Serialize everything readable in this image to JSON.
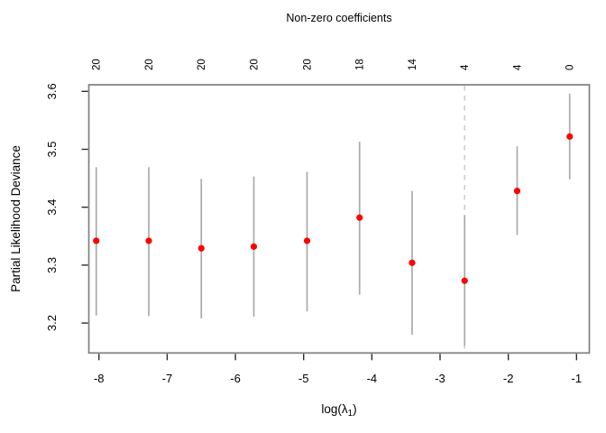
{
  "chart_data": {
    "type": "scatter",
    "title": "Non-zero coefficients",
    "xlabel": {
      "text": "log(λ1)",
      "prefix": "log(λ",
      "sub": "1",
      "suffix": ")"
    },
    "ylabel": "Partial Likelihood Deviance",
    "x_ticks": [
      -8,
      -7,
      -6,
      -5,
      -4,
      -3,
      -2,
      -1
    ],
    "y_ticks": [
      3.2,
      3.3,
      3.4,
      3.5,
      3.6
    ],
    "xlim": [
      -8.15,
      -0.81
    ],
    "ylim": [
      3.148,
      3.611
    ],
    "grid": false,
    "top_axis_labels": [
      "20",
      "20",
      "20",
      "20",
      "20",
      "18",
      "14",
      "4",
      "4",
      "0"
    ],
    "points": {
      "x": [
        -8.04,
        -7.27,
        -6.5,
        -5.73,
        -4.95,
        -4.18,
        -3.41,
        -2.64,
        -1.87,
        -1.1
      ],
      "y": [
        3.342,
        3.342,
        3.329,
        3.332,
        3.342,
        3.382,
        3.304,
        3.273,
        3.428,
        3.522
      ],
      "lower": [
        3.213,
        3.212,
        3.208,
        3.211,
        3.22,
        3.249,
        3.18,
        3.161,
        3.352,
        3.448
      ],
      "upper": [
        3.469,
        3.469,
        3.449,
        3.453,
        3.461,
        3.513,
        3.428,
        3.386,
        3.505,
        3.596
      ]
    },
    "vline": {
      "x": -2.64,
      "style": "dashed"
    },
    "legend": null,
    "colors": {
      "point": "#ff0000",
      "error_bar": "#aaaaaa",
      "vline": "#c8c8c8",
      "box": "#7f7f7f",
      "tick": "#2b2b2b",
      "text": "#000000"
    }
  }
}
